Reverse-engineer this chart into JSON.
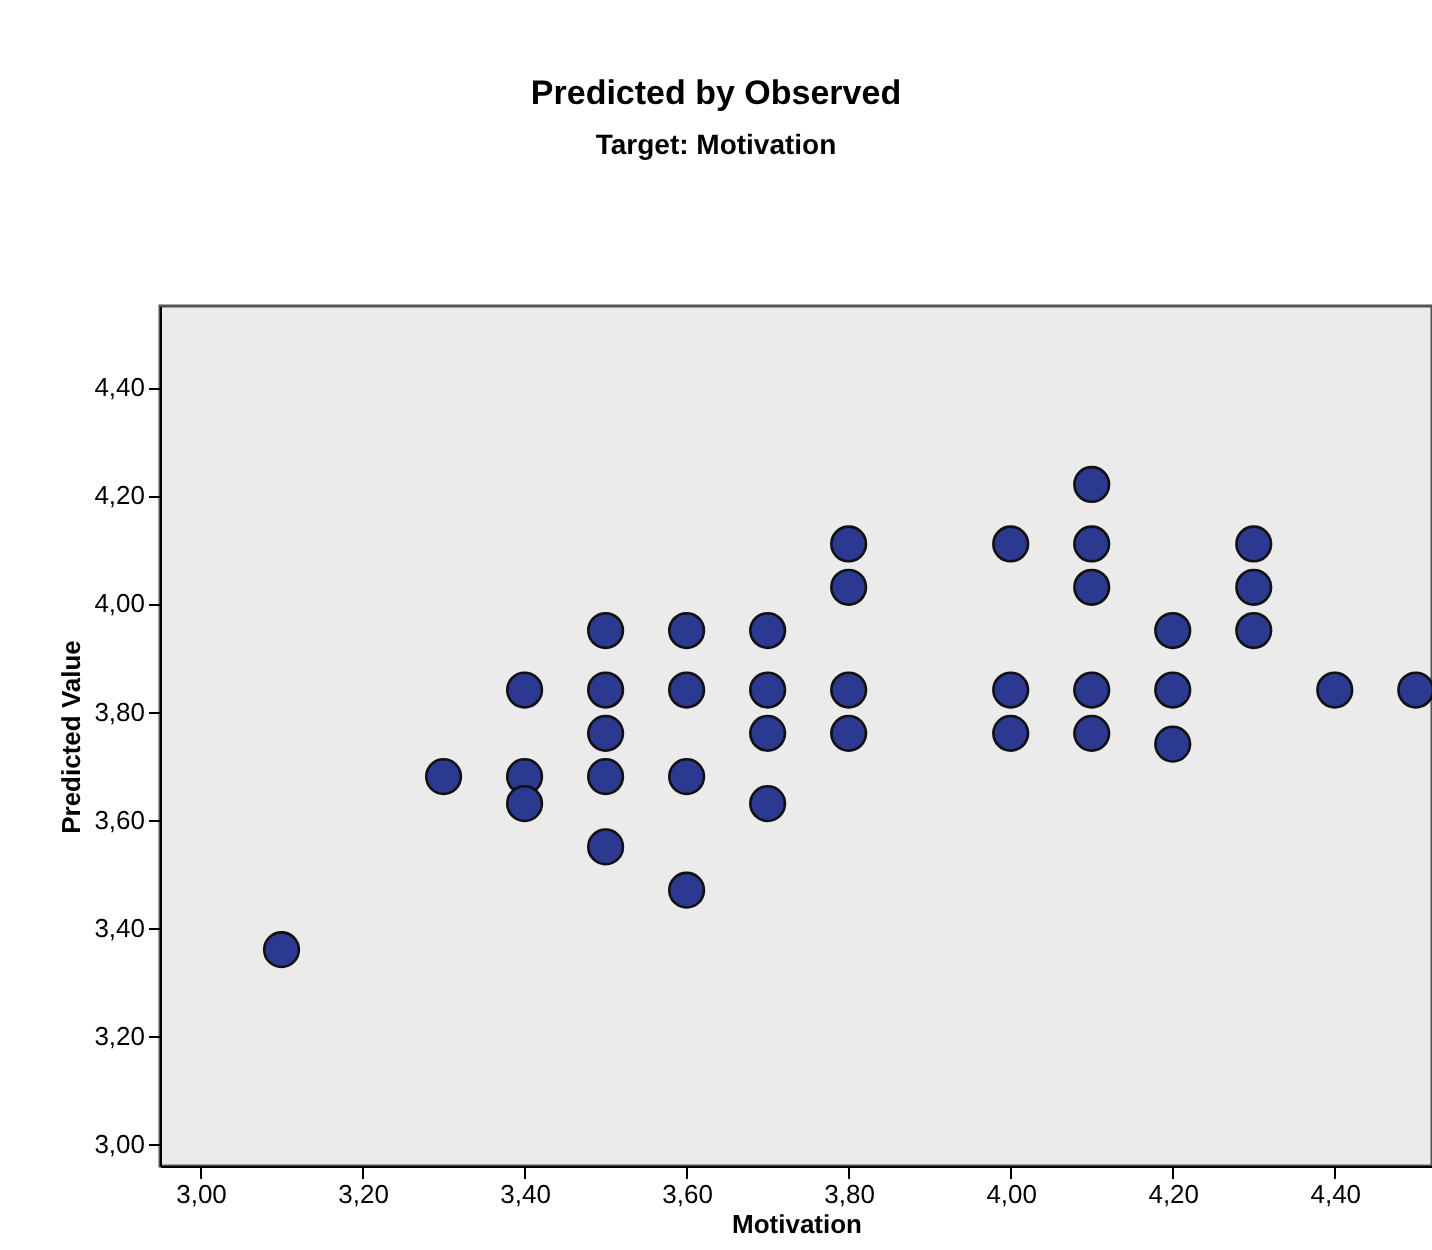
{
  "chart_data": {
    "type": "scatter",
    "title": "Predicted by Observed",
    "subtitle": "Target: Motivation",
    "xlabel": "Motivation",
    "ylabel": "Predicted Value",
    "x": [
      3.1,
      3.3,
      3.4,
      3.4,
      3.4,
      3.5,
      3.5,
      3.5,
      3.5,
      3.5,
      3.6,
      3.6,
      3.6,
      3.6,
      3.7,
      3.7,
      3.7,
      3.7,
      3.8,
      3.8,
      3.8,
      3.8,
      4.0,
      4.0,
      4.0,
      4.1,
      4.1,
      4.1,
      4.1,
      4.1,
      4.2,
      4.2,
      4.2,
      4.3,
      4.3,
      4.3,
      4.4,
      4.5
    ],
    "series": [
      {
        "color": "#2b3990",
        "values": [
          3.36,
          3.68,
          3.84,
          3.68,
          3.63,
          3.95,
          3.84,
          3.76,
          3.68,
          3.55,
          3.95,
          3.84,
          3.68,
          3.47,
          3.95,
          3.84,
          3.76,
          3.63,
          4.11,
          4.03,
          3.84,
          3.76,
          4.11,
          3.84,
          3.76,
          4.22,
          4.11,
          4.03,
          3.84,
          3.76,
          3.95,
          3.84,
          3.74,
          4.11,
          4.03,
          3.95,
          3.84,
          3.84
        ]
      }
    ],
    "xlim": [
      2.95,
      4.52
    ],
    "ylim": [
      2.96,
      4.55
    ],
    "xticks": [
      {
        "value": 3.0,
        "label": "3,00"
      },
      {
        "value": 3.2,
        "label": "3,20"
      },
      {
        "value": 3.4,
        "label": "3,40"
      },
      {
        "value": 3.6,
        "label": "3,60"
      },
      {
        "value": 3.8,
        "label": "3,80"
      },
      {
        "value": 4.0,
        "label": "4,00"
      },
      {
        "value": 4.2,
        "label": "4,20"
      },
      {
        "value": 4.4,
        "label": "4,40"
      }
    ],
    "yticks": [
      {
        "value": 3.0,
        "label": "3,00"
      },
      {
        "value": 3.2,
        "label": "3,20"
      },
      {
        "value": 3.4,
        "label": "3,40"
      },
      {
        "value": 3.6,
        "label": "3,60"
      },
      {
        "value": 3.8,
        "label": "3,80"
      },
      {
        "value": 4.0,
        "label": "4,00"
      },
      {
        "value": 4.2,
        "label": "4,20"
      },
      {
        "value": 4.4,
        "label": "4,40"
      }
    ],
    "marker": "circle",
    "grid": false,
    "legend": false
  }
}
